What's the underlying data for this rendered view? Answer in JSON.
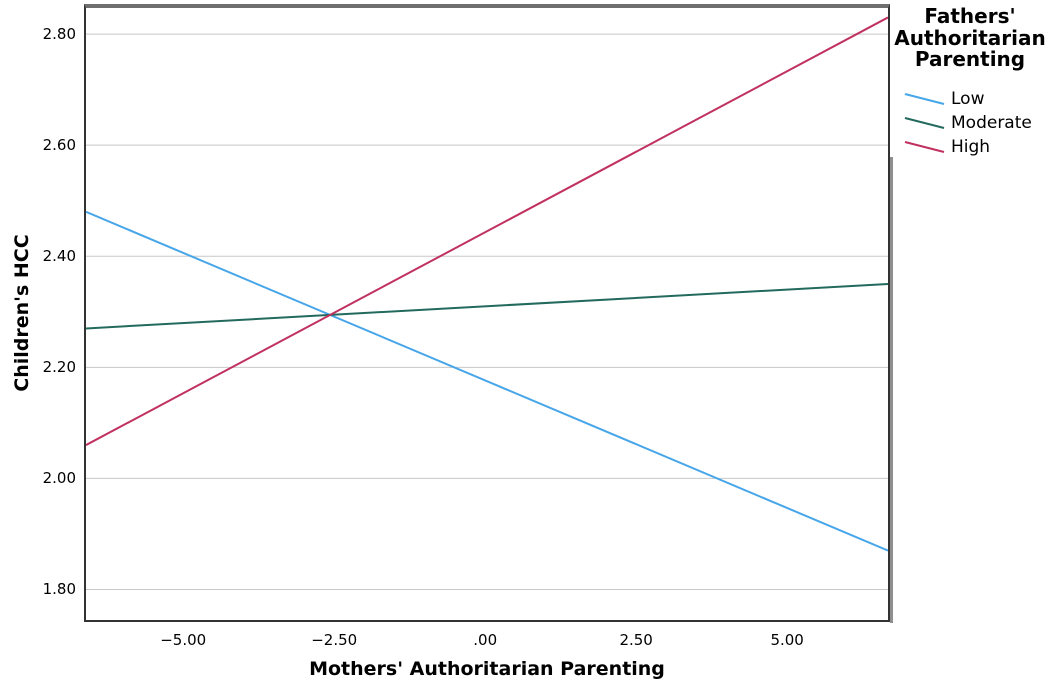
{
  "colors": {
    "background": "#ffffff",
    "gridline": "#c8c8c8",
    "frame": "#333333",
    "frame_top": "#6e6e6e",
    "text": "#000000",
    "series_low": "#47a6e9",
    "series_moderate": "#226a5d",
    "series_high": "#c1315f"
  },
  "chart_data": {
    "type": "line",
    "title": "",
    "xlabel": "Mothers' Authoritarian Parenting",
    "ylabel": "Children's HCC",
    "xlim": [
      -6.61,
      6.67
    ],
    "ylim": [
      1.745,
      2.847
    ],
    "grid": "horizontal-only",
    "x_ticks": [
      {
        "value": -5.0,
        "label": "−5.00"
      },
      {
        "value": -2.5,
        "label": "−2.50"
      },
      {
        "value": 0.0,
        "label": ".00"
      },
      {
        "value": 2.5,
        "label": "2.50"
      },
      {
        "value": 5.0,
        "label": "5.00"
      }
    ],
    "y_ticks": [
      {
        "value": 1.8,
        "label": "1.80"
      },
      {
        "value": 2.0,
        "label": "2.00"
      },
      {
        "value": 2.2,
        "label": "2.20"
      },
      {
        "value": 2.4,
        "label": "2.40"
      },
      {
        "value": 2.6,
        "label": "2.60"
      },
      {
        "value": 2.8,
        "label": "2.80"
      }
    ],
    "legend": {
      "title": "Fathers' Authoritarian Parenting",
      "position": "top-right",
      "entries": [
        {
          "label": "Low",
          "color": "#47a6e9"
        },
        {
          "label": "Moderate",
          "color": "#226a5d"
        },
        {
          "label": "High",
          "color": "#c1315f"
        }
      ]
    },
    "series": [
      {
        "name": "Low",
        "color": "#47a6e9",
        "points": [
          [
            -6.61,
            2.48
          ],
          [
            6.67,
            1.87
          ]
        ]
      },
      {
        "name": "Moderate",
        "color": "#226a5d",
        "points": [
          [
            -6.61,
            2.27
          ],
          [
            6.67,
            2.35
          ]
        ]
      },
      {
        "name": "High",
        "color": "#c1315f",
        "points": [
          [
            -6.61,
            2.06
          ],
          [
            6.67,
            2.83
          ]
        ]
      }
    ]
  }
}
